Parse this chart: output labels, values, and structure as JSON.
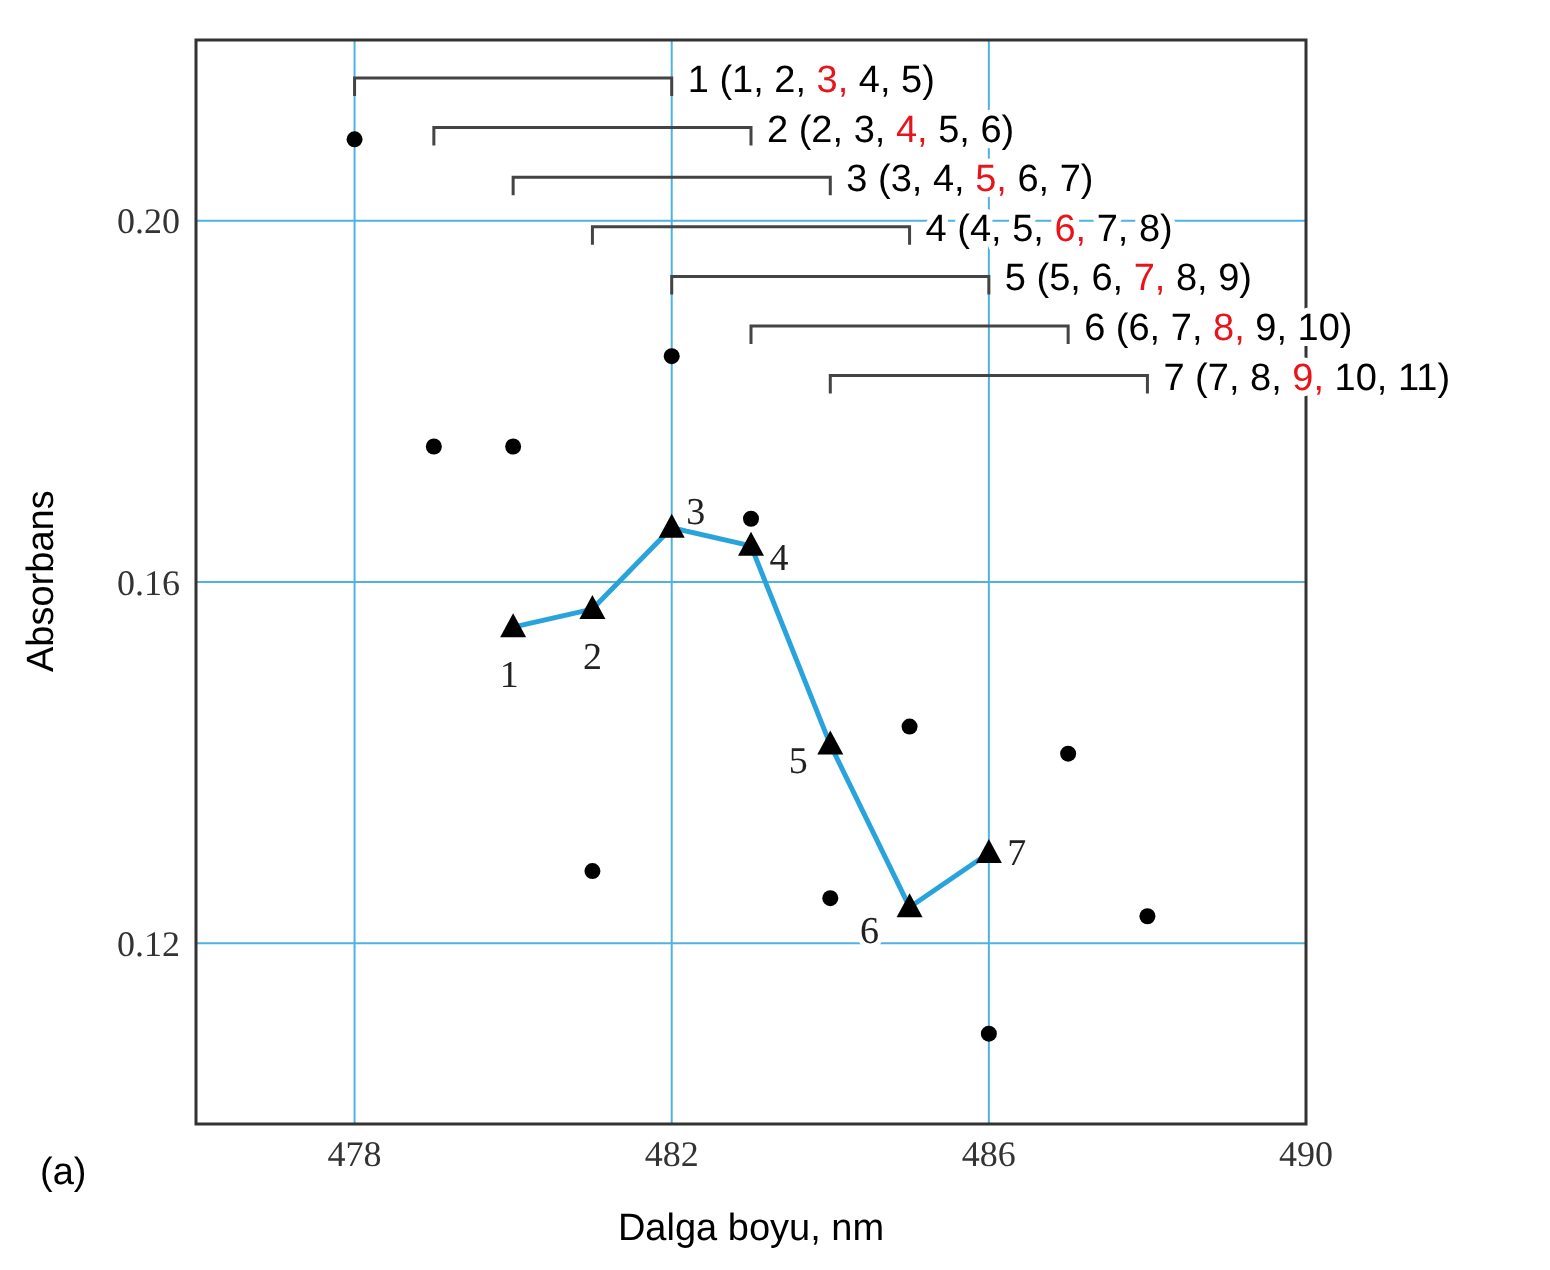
{
  "chart_data": {
    "type": "scatter",
    "xlabel": "Dalga boyu, nm",
    "ylabel": "Absorbans",
    "xlim": [
      476,
      490
    ],
    "xticks": [
      478,
      482,
      486,
      490
    ],
    "ylim": [
      0.1,
      0.22
    ],
    "yticks": [
      {
        "value": 0.12,
        "label": "0.12"
      },
      {
        "value": 0.16,
        "label": "0.16"
      },
      {
        "value": 0.2,
        "label": "0.20"
      }
    ],
    "grid": true,
    "series": [
      {
        "marker": "circle",
        "color": "#000000",
        "x": [
          478,
          479,
          480,
          481,
          482,
          483,
          484,
          485,
          486,
          487,
          488
        ],
        "values": [
          0.209,
          0.175,
          0.175,
          0.128,
          0.185,
          0.167,
          0.125,
          0.144,
          0.11,
          0.141,
          0.123
        ]
      },
      {
        "type": "line",
        "marker": "triangle",
        "line_style": "solid",
        "color": "#29a3dc",
        "x": [
          480,
          481,
          482,
          483,
          484,
          485,
          486
        ],
        "values": [
          0.155,
          0.157,
          0.166,
          0.164,
          0.142,
          0.124,
          0.13
        ]
      }
    ],
    "annotations": [
      "1 (1, 2, 3, 4, 5)",
      "2 (2, 3, 4, 5, 6)",
      "3 (3, 4, 5, 6, 7)",
      "4 (4, 5, 6, 7, 8)",
      "5 (5, 6, 7, 8, 9)",
      "6 (6, 7, 8, 9, 10)",
      "7 (7, 8, 9, 10, 11)",
      "(a)",
      {
        "text": "1",
        "x": 480,
        "y": 0.155
      },
      {
        "text": "2",
        "x": 481,
        "y": 0.157
      },
      {
        "text": "3",
        "x": 482,
        "y": 0.166
      },
      {
        "text": "4",
        "x": 483,
        "y": 0.164
      },
      {
        "text": "5",
        "x": 484,
        "y": 0.142
      },
      {
        "text": "6",
        "x": 485,
        "y": 0.124
      },
      {
        "text": "7",
        "x": 486,
        "y": 0.13
      }
    ]
  }
}
